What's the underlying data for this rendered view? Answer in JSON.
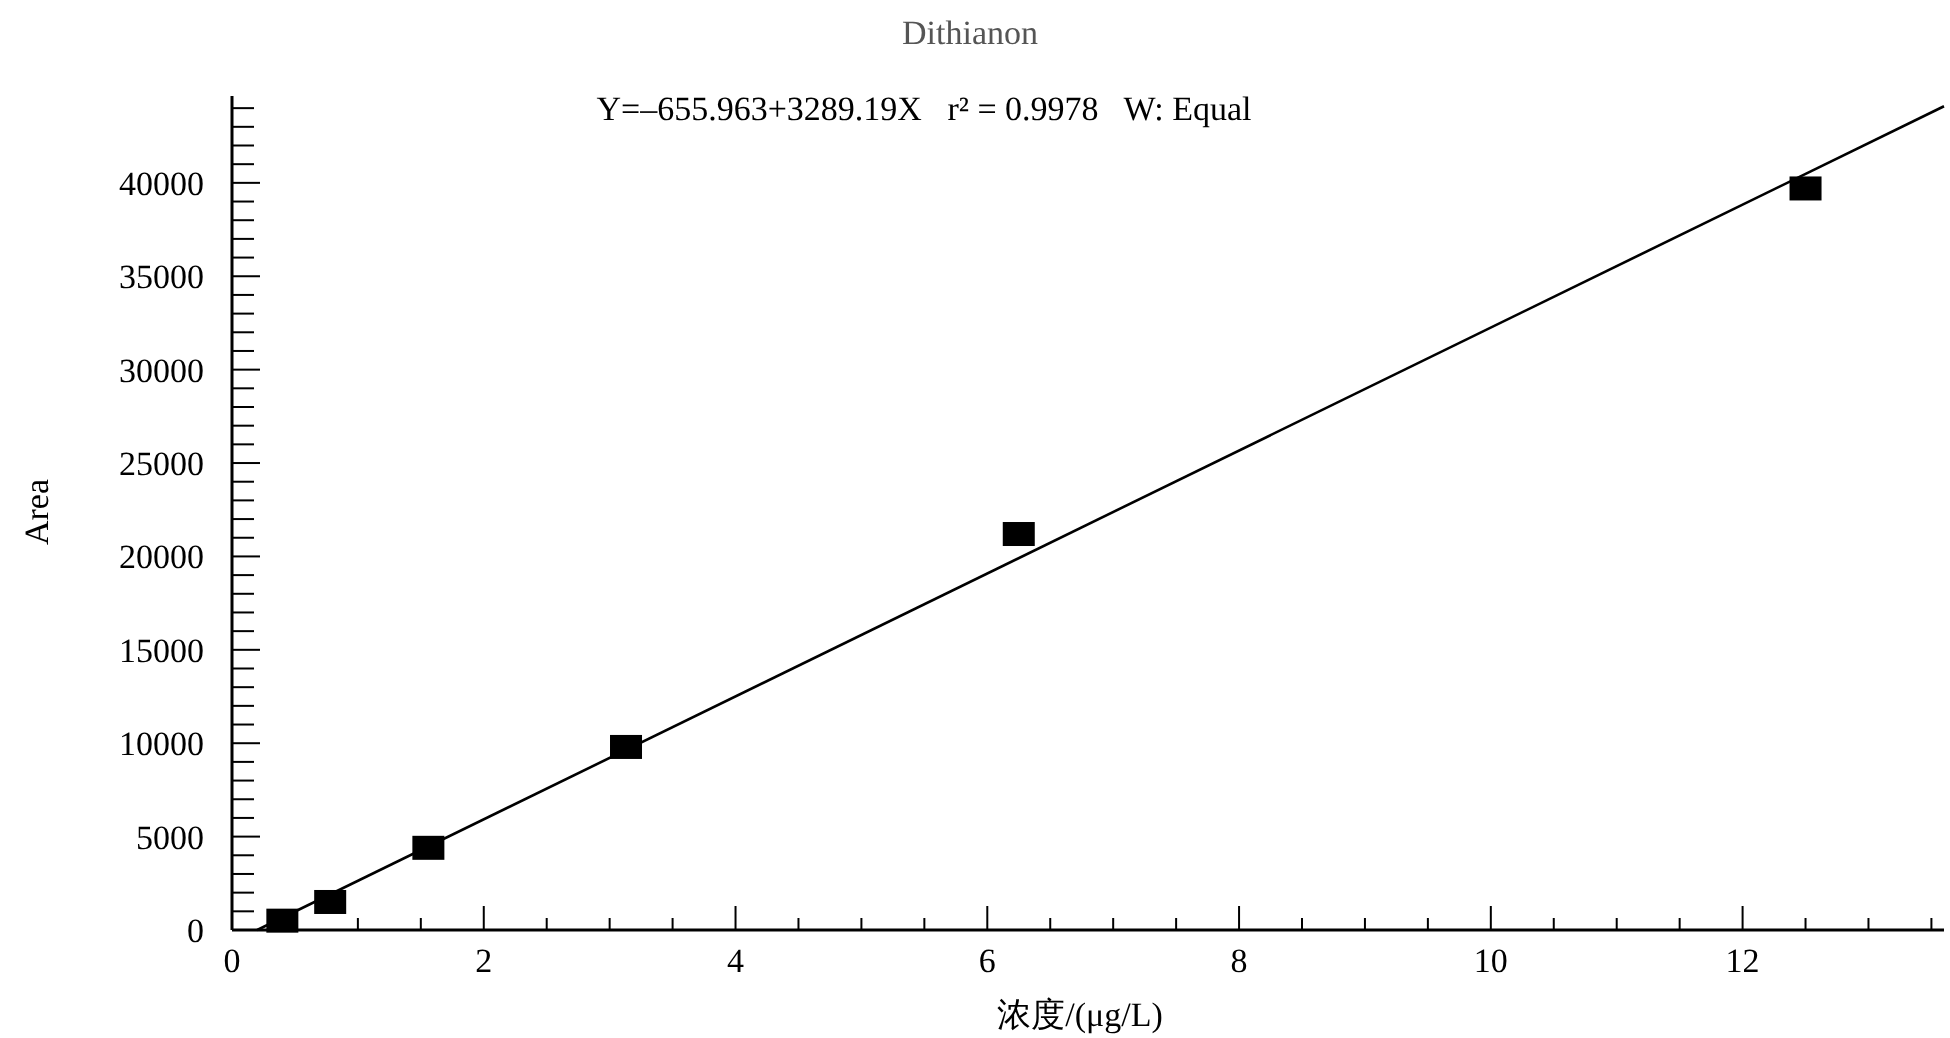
{
  "chart_data": {
    "type": "scatter",
    "title": "Dithianon",
    "annotations": [
      "Y=–655.963+3289.19X   r² = 0.9978   W: Equal"
    ],
    "xlabel": "浓度/(μg/L)",
    "ylabel": "Area",
    "xlim": [
      0,
      13.6
    ],
    "ylim": [
      0,
      44650
    ],
    "xticks": [
      0,
      {
        "value": 0.5,
        "label": null
      },
      {
        "value": 1,
        "label": null
      },
      {
        "value": 1.5,
        "label": null
      },
      2,
      {
        "value": 2.5,
        "label": null
      },
      {
        "value": 3,
        "label": null
      },
      {
        "value": 3.5,
        "label": null
      },
      4,
      {
        "value": 4.5,
        "label": null
      },
      {
        "value": 5,
        "label": null
      },
      {
        "value": 5.5,
        "label": null
      },
      6,
      {
        "value": 6.5,
        "label": null
      },
      {
        "value": 7,
        "label": null
      },
      {
        "value": 7.5,
        "label": null
      },
      8,
      {
        "value": 8.5,
        "label": null
      },
      {
        "value": 9,
        "label": null
      },
      {
        "value": 9.5,
        "label": null
      },
      10,
      {
        "value": 10.5,
        "label": null
      },
      {
        "value": 11,
        "label": null
      },
      {
        "value": 11.5,
        "label": null
      },
      12,
      {
        "value": 12.5,
        "label": null
      },
      {
        "value": 13,
        "label": null
      },
      {
        "value": 13.5,
        "label": null
      }
    ],
    "yticks": [
      0,
      {
        "value": 1000,
        "label": null
      },
      {
        "value": 2000,
        "label": null
      },
      {
        "value": 3000,
        "label": null
      },
      {
        "value": 4000,
        "label": null
      },
      5000,
      {
        "value": 6000,
        "label": null
      },
      {
        "value": 7000,
        "label": null
      },
      {
        "value": 8000,
        "label": null
      },
      {
        "value": 9000,
        "label": null
      },
      10000,
      {
        "value": 11000,
        "label": null
      },
      {
        "value": 12000,
        "label": null
      },
      {
        "value": 13000,
        "label": null
      },
      {
        "value": 14000,
        "label": null
      },
      15000,
      {
        "value": 16000,
        "label": null
      },
      {
        "value": 17000,
        "label": null
      },
      {
        "value": 18000,
        "label": null
      },
      {
        "value": 19000,
        "label": null
      },
      20000,
      {
        "value": 21000,
        "label": null
      },
      {
        "value": 22000,
        "label": null
      },
      {
        "value": 23000,
        "label": null
      },
      {
        "value": 24000,
        "label": null
      },
      25000,
      {
        "value": 26000,
        "label": null
      },
      {
        "value": 27000,
        "label": null
      },
      {
        "value": 28000,
        "label": null
      },
      {
        "value": 29000,
        "label": null
      },
      30000,
      {
        "value": 31000,
        "label": null
      },
      {
        "value": 32000,
        "label": null
      },
      {
        "value": 33000,
        "label": null
      },
      {
        "value": 34000,
        "label": null
      },
      35000,
      {
        "value": 36000,
        "label": null
      },
      {
        "value": 37000,
        "label": null
      },
      {
        "value": 38000,
        "label": null
      },
      {
        "value": 39000,
        "label": null
      },
      40000,
      {
        "value": 41000,
        "label": null
      },
      {
        "value": 42000,
        "label": null
      },
      {
        "value": 43000,
        "label": null
      },
      {
        "value": 44000,
        "label": null
      }
    ],
    "series": [
      {
        "marker": "square",
        "color": "#000000",
        "x": [
          0.4,
          0.78,
          1.56,
          3.13,
          6.25,
          12.5
        ],
        "values": [
          500,
          1500,
          4400,
          9800,
          21200,
          39700
        ]
      },
      {
        "type": "line",
        "color": "#000000",
        "x": [
          0.2,
          13.6
        ],
        "values": [
          0,
          44100
        ]
      }
    ]
  }
}
